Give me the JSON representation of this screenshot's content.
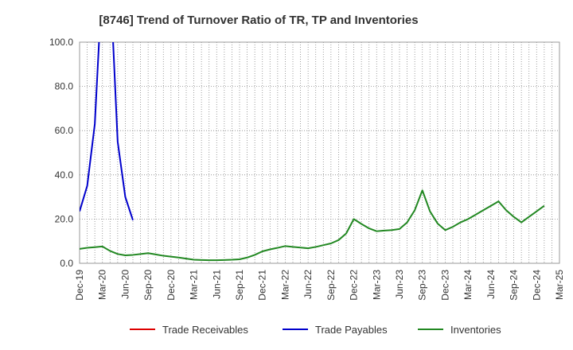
{
  "chart_data": {
    "type": "line",
    "title": "[8746]  Trend of Turnover Ratio of TR, TP and Inventories",
    "xlabel": "",
    "ylabel": "",
    "ylim": [
      0,
      100
    ],
    "yticks": [
      "0.0",
      "20.0",
      "40.0",
      "60.0",
      "80.0",
      "100.0"
    ],
    "xticks": [
      "Dec-19",
      "Mar-20",
      "Jun-20",
      "Sep-20",
      "Dec-20",
      "Mar-21",
      "Jun-21",
      "Sep-21",
      "Dec-21",
      "Mar-22",
      "Jun-22",
      "Sep-22",
      "Dec-22",
      "Mar-23",
      "Jun-23",
      "Sep-23",
      "Dec-23",
      "Mar-24",
      "Jun-24",
      "Sep-24",
      "Dec-24",
      "Mar-25"
    ],
    "x_months": [
      "Dec-19",
      "Jan-20",
      "Feb-20",
      "Mar-20",
      "Apr-20",
      "May-20",
      "Jun-20",
      "Jul-20",
      "Aug-20",
      "Sep-20",
      "Oct-20",
      "Nov-20",
      "Dec-20",
      "Jan-21",
      "Feb-21",
      "Mar-21",
      "Apr-21",
      "May-21",
      "Jun-21",
      "Jul-21",
      "Aug-21",
      "Sep-21",
      "Oct-21",
      "Nov-21",
      "Dec-21",
      "Jan-22",
      "Feb-22",
      "Mar-22",
      "Apr-22",
      "May-22",
      "Jun-22",
      "Jul-22",
      "Aug-22",
      "Sep-22",
      "Oct-22",
      "Nov-22",
      "Dec-22",
      "Jan-23",
      "Feb-23",
      "Mar-23",
      "Apr-23",
      "May-23",
      "Jun-23",
      "Jul-23",
      "Aug-23",
      "Sep-23",
      "Oct-23",
      "Nov-23",
      "Dec-23",
      "Jan-24",
      "Feb-24",
      "Mar-24",
      "Apr-24",
      "May-24",
      "Jun-24",
      "Jul-24",
      "Aug-24",
      "Sep-24",
      "Oct-24",
      "Nov-24",
      "Dec-24",
      "Jan-25",
      "Feb-25",
      "Mar-25"
    ],
    "grid": true,
    "legend_position": "bottom",
    "series": [
      {
        "name": "Trade Receivables",
        "color": "#dd0000",
        "values": []
      },
      {
        "name": "Trade Payables",
        "color": "#0000cc",
        "values": [
          23.5,
          35,
          63,
          130,
          130,
          55,
          30,
          19.5,
          null,
          null,
          null,
          null,
          null,
          null,
          null,
          null,
          null,
          null,
          null,
          null,
          null,
          null,
          null,
          null,
          null,
          null,
          null,
          null,
          null,
          null,
          null,
          null,
          null,
          null,
          null,
          null,
          null,
          null,
          null,
          null,
          null,
          null,
          null,
          null,
          null,
          null,
          null,
          null,
          null,
          null,
          null,
          null,
          null,
          null,
          null,
          null,
          null,
          null,
          null,
          null,
          null,
          null,
          null,
          null
        ]
      },
      {
        "name": "Inventories",
        "color": "#228822",
        "values": [
          6.5,
          7,
          7.3,
          7.6,
          5.6,
          4.2,
          3.6,
          3.8,
          4.2,
          4.6,
          4.0,
          3.4,
          3.0,
          2.6,
          2.1,
          1.6,
          1.5,
          1.4,
          1.4,
          1.5,
          1.6,
          1.8,
          2.6,
          3.8,
          5.4,
          6.3,
          7.0,
          7.8,
          7.4,
          7.1,
          6.8,
          7.4,
          8.2,
          9.0,
          10.5,
          13.5,
          20.0,
          17.8,
          15.8,
          14.5,
          14.8,
          15.0,
          15.5,
          18.5,
          24.0,
          33.0,
          23.5,
          18.0,
          15.0,
          16.5,
          18.5,
          20.0,
          22.0,
          24.0,
          26.0,
          28.0,
          24.0,
          21.0,
          18.5,
          21.0,
          23.5,
          26.0,
          null,
          null
        ]
      }
    ]
  }
}
